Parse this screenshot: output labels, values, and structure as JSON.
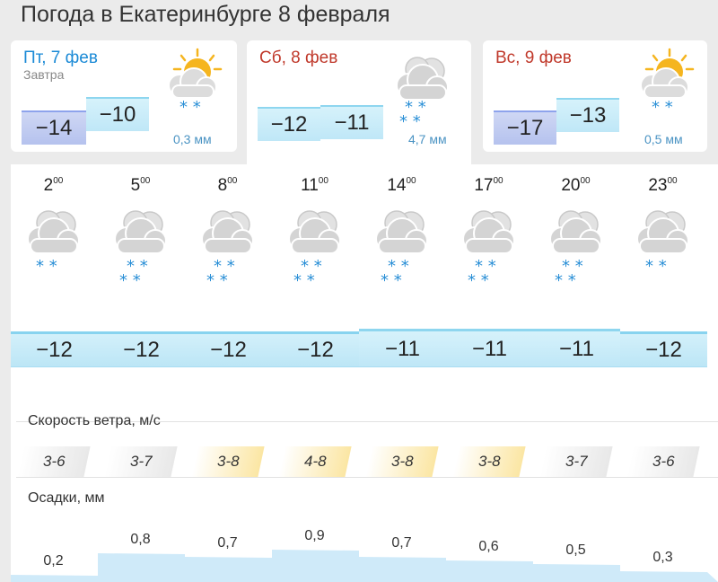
{
  "page_title": "Погода в Екатеринбурге 8 февраля",
  "days": [
    {
      "name": "Пт, 7 фев",
      "name_color": "#1b8ad6",
      "sub": "Завтра",
      "t_min": "−14",
      "t_max": "−10",
      "precip": "0,3 мм",
      "icon": "partly-cloudy-light-snow-icon"
    },
    {
      "name": "Сб, 8 фев",
      "name_color": "#c0392b",
      "sub": "",
      "t_min": "−12",
      "t_max": "−11",
      "precip": "4,7 мм",
      "icon": "cloudy-snow-icon"
    },
    {
      "name": "Вс, 9 фев",
      "name_color": "#c0392b",
      "sub": "",
      "t_min": "−17",
      "t_max": "−13",
      "precip": "0,5 мм",
      "icon": "partly-cloudy-light-snow-icon"
    }
  ],
  "hours": [
    {
      "h": "2",
      "m": "00",
      "temp": "−12",
      "snow": "light",
      "wind": "3-6",
      "wind_level": "gray",
      "precip": "0,2",
      "precip_mm": 0.2
    },
    {
      "h": "5",
      "m": "00",
      "temp": "−12",
      "snow": "heavy",
      "wind": "3-7",
      "wind_level": "gray",
      "precip": "0,8",
      "precip_mm": 0.8
    },
    {
      "h": "8",
      "m": "00",
      "temp": "−12",
      "snow": "heavy",
      "wind": "3-8",
      "wind_level": "yellow",
      "precip": "0,7",
      "precip_mm": 0.7
    },
    {
      "h": "11",
      "m": "00",
      "temp": "−12",
      "snow": "heavy",
      "wind": "4-8",
      "wind_level": "yellow",
      "precip": "0,9",
      "precip_mm": 0.9
    },
    {
      "h": "14",
      "m": "00",
      "temp": "−11",
      "snow": "heavy",
      "wind": "3-8",
      "wind_level": "yellow",
      "precip": "0,7",
      "precip_mm": 0.7
    },
    {
      "h": "17",
      "m": "00",
      "temp": "−11",
      "snow": "heavy",
      "wind": "3-8",
      "wind_level": "yellow",
      "precip": "0,6",
      "precip_mm": 0.6
    },
    {
      "h": "20",
      "m": "00",
      "temp": "−11",
      "snow": "heavy",
      "wind": "3-7",
      "wind_level": "gray",
      "precip": "0,5",
      "precip_mm": 0.5
    },
    {
      "h": "23",
      "m": "00",
      "temp": "−12",
      "snow": "light",
      "wind": "3-6",
      "wind_level": "gray",
      "precip": "0,3",
      "precip_mm": 0.3
    }
  ],
  "wind_label": "Скорость ветра, м/с",
  "precip_label": "Осадки, мм",
  "colors": {
    "snow": "#2a8fd6",
    "cloud": "#dcdcdc",
    "sun": "#f5b51f",
    "precip_fill": "#cfeaf9"
  }
}
